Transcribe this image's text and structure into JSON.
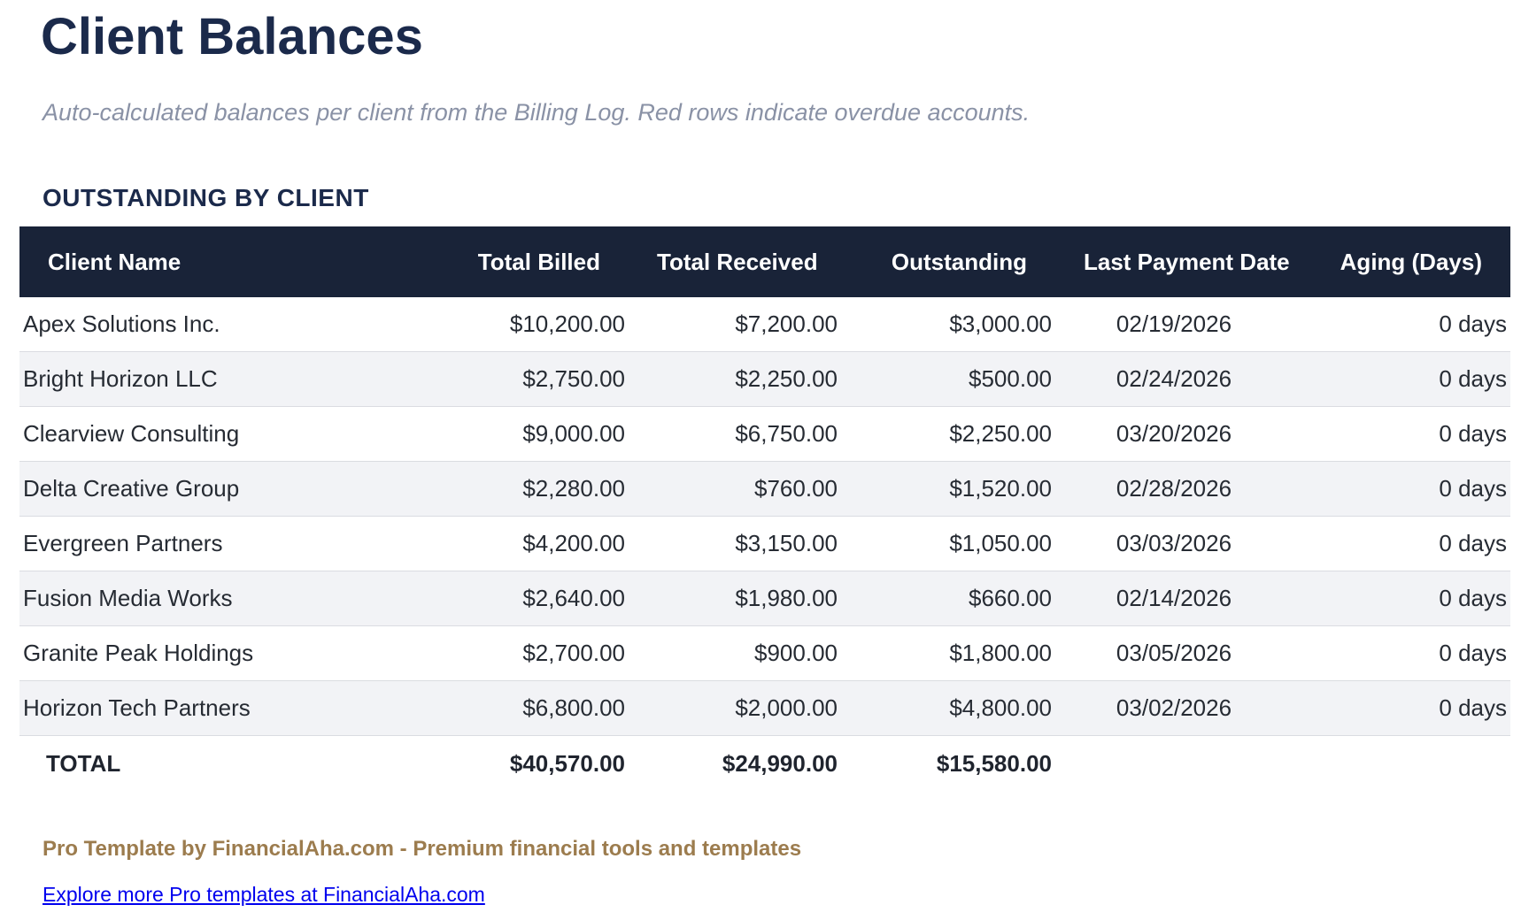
{
  "page": {
    "title": "Client Balances",
    "subtitle": "Auto-calculated balances per client from the Billing Log. Red rows indicate overdue accounts.",
    "section_title": "OUTSTANDING BY CLIENT"
  },
  "table": {
    "columns": [
      "Client Name",
      "Total Billed",
      "Total Received",
      "Outstanding",
      "Last Payment Date",
      "Aging (Days)"
    ],
    "rows": [
      [
        "Apex Solutions Inc.",
        "$10,200.00",
        "$7,200.00",
        "$3,000.00",
        "02/19/2026",
        "0 days"
      ],
      [
        "Bright Horizon LLC",
        "$2,750.00",
        "$2,250.00",
        "$500.00",
        "02/24/2026",
        "0 days"
      ],
      [
        "Clearview Consulting",
        "$9,000.00",
        "$6,750.00",
        "$2,250.00",
        "03/20/2026",
        "0 days"
      ],
      [
        "Delta Creative Group",
        "$2,280.00",
        "$760.00",
        "$1,520.00",
        "02/28/2026",
        "0 days"
      ],
      [
        "Evergreen Partners",
        "$4,200.00",
        "$3,150.00",
        "$1,050.00",
        "03/03/2026",
        "0 days"
      ],
      [
        "Fusion Media Works",
        "$2,640.00",
        "$1,980.00",
        "$660.00",
        "02/14/2026",
        "0 days"
      ],
      [
        "Granite Peak Holdings",
        "$2,700.00",
        "$900.00",
        "$1,800.00",
        "03/05/2026",
        "0 days"
      ],
      [
        "Horizon Tech Partners",
        "$6,800.00",
        "$2,000.00",
        "$4,800.00",
        "03/02/2026",
        "0 days"
      ]
    ],
    "total": [
      "TOTAL",
      "$40,570.00",
      "$24,990.00",
      "$15,580.00",
      "",
      ""
    ]
  },
  "footer": {
    "branding": "Pro Template by FinancialAha.com - Premium financial tools and templates",
    "link": "Explore more Pro templates at FinancialAha.com"
  },
  "colors": {
    "header_bg": "#192338",
    "title_navy": "#1b2a4b",
    "row_alt_gray": "#f2f3f6",
    "row_border": "#dadce1",
    "subtitle_gray": "#8a92a6",
    "brand_brown": "#9c7c4e",
    "link_blue": "#0000ee"
  }
}
